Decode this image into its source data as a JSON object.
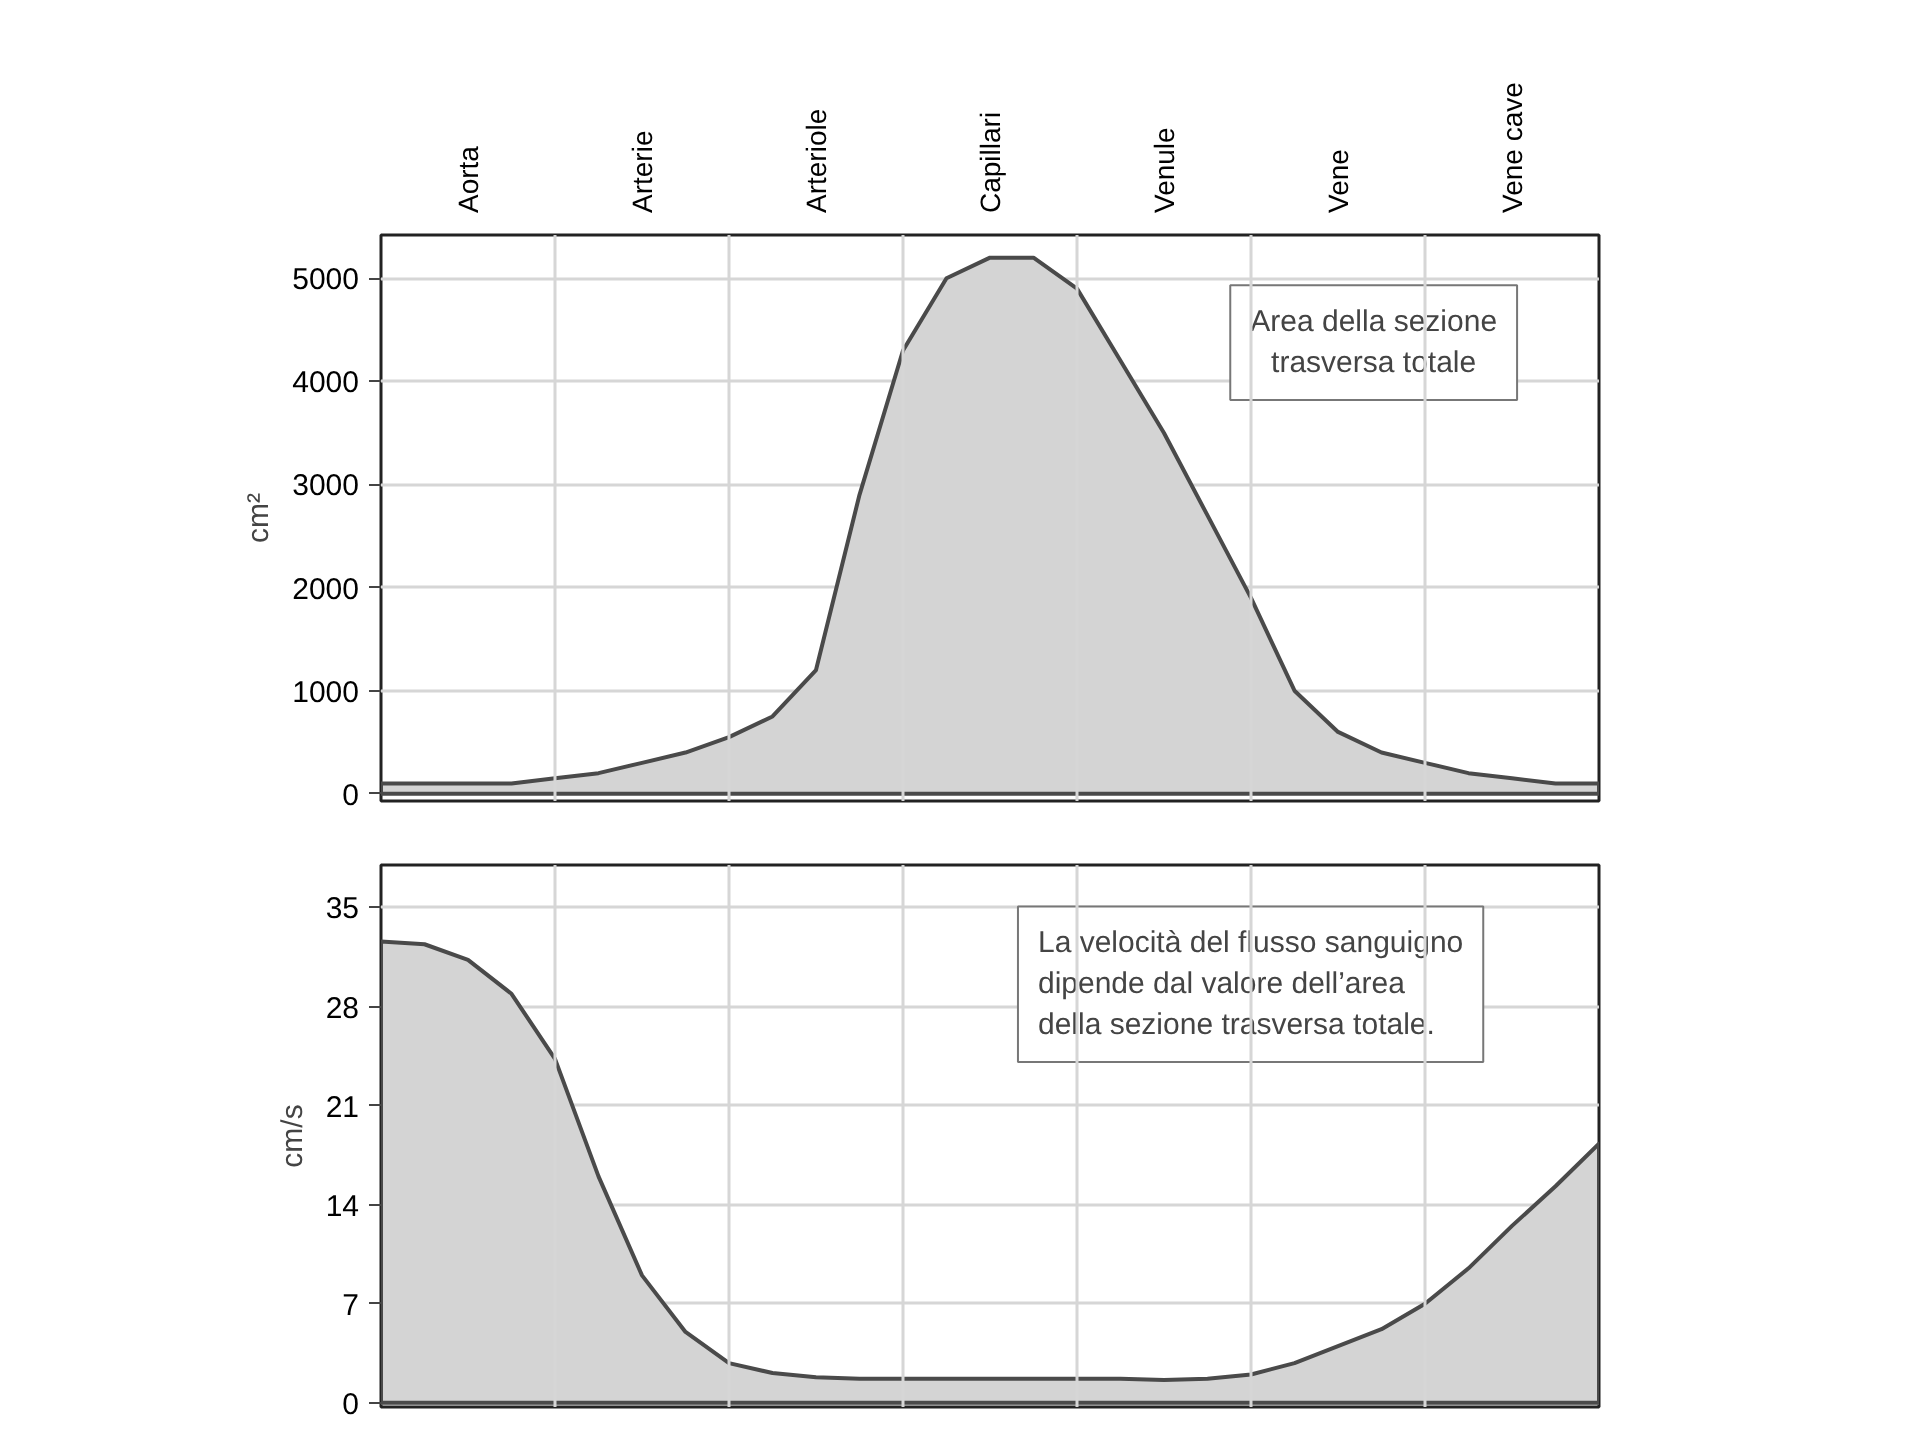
{
  "chart_data": [
    {
      "type": "area",
      "ylabel": "cm²",
      "categories": [
        null,
        null,
        "Aorta",
        null,
        null,
        null,
        "Arterie",
        null,
        null,
        null,
        "Arteriole",
        null,
        null,
        null,
        "Capillari",
        null,
        null,
        null,
        "Venule",
        null,
        null,
        null,
        "Vene",
        null,
        null,
        null,
        "Vene cave",
        null,
        null
      ],
      "ylim": [
        -70,
        5420
      ],
      "yticks": [
        0,
        1000,
        2000,
        3000,
        4000,
        5000
      ],
      "grid": true,
      "series": [
        {
          "color": "#d4d4d4",
          "values": [
            100,
            100,
            100,
            100,
            150,
            200,
            300,
            400,
            550,
            750,
            1200,
            2900,
            4300,
            5000,
            5200,
            5200,
            4900,
            4200,
            3500,
            2700,
            1900,
            1000,
            600,
            400,
            300,
            200,
            150,
            100,
            100
          ]
        }
      ],
      "annotations": [
        "Area della sezione\ntrasversa totale"
      ]
    },
    {
      "type": "area",
      "ylabel": "cm/s",
      "categories": [
        null,
        null,
        null,
        null,
        null,
        null,
        null,
        null,
        null,
        null,
        null,
        null,
        null,
        null,
        null,
        null,
        null,
        null,
        null,
        null,
        null,
        null,
        null,
        null,
        null,
        null,
        null,
        null,
        null
      ],
      "ylim": [
        -0.3,
        38
      ],
      "yticks": [
        0,
        7,
        14,
        21,
        28,
        35
      ],
      "grid": true,
      "tick_labels": "y",
      "series": [
        {
          "color": "#d4d4d4",
          "values": [
            32.6,
            32.4,
            31.3,
            28.9,
            24.3,
            16,
            9,
            5,
            2.8,
            2.1,
            1.8,
            1.7,
            1.7,
            1.7,
            1.7,
            1.7,
            1.7,
            1.7,
            1.6,
            1.7,
            2,
            2.8,
            4,
            5.2,
            7,
            9.5,
            12.5,
            15.3,
            18.3
          ]
        }
      ],
      "annotations": [
        "La velocità del flusso sanguigno\ndipende dal valore dell’area\ndella sezione trasversa totale."
      ]
    }
  ]
}
